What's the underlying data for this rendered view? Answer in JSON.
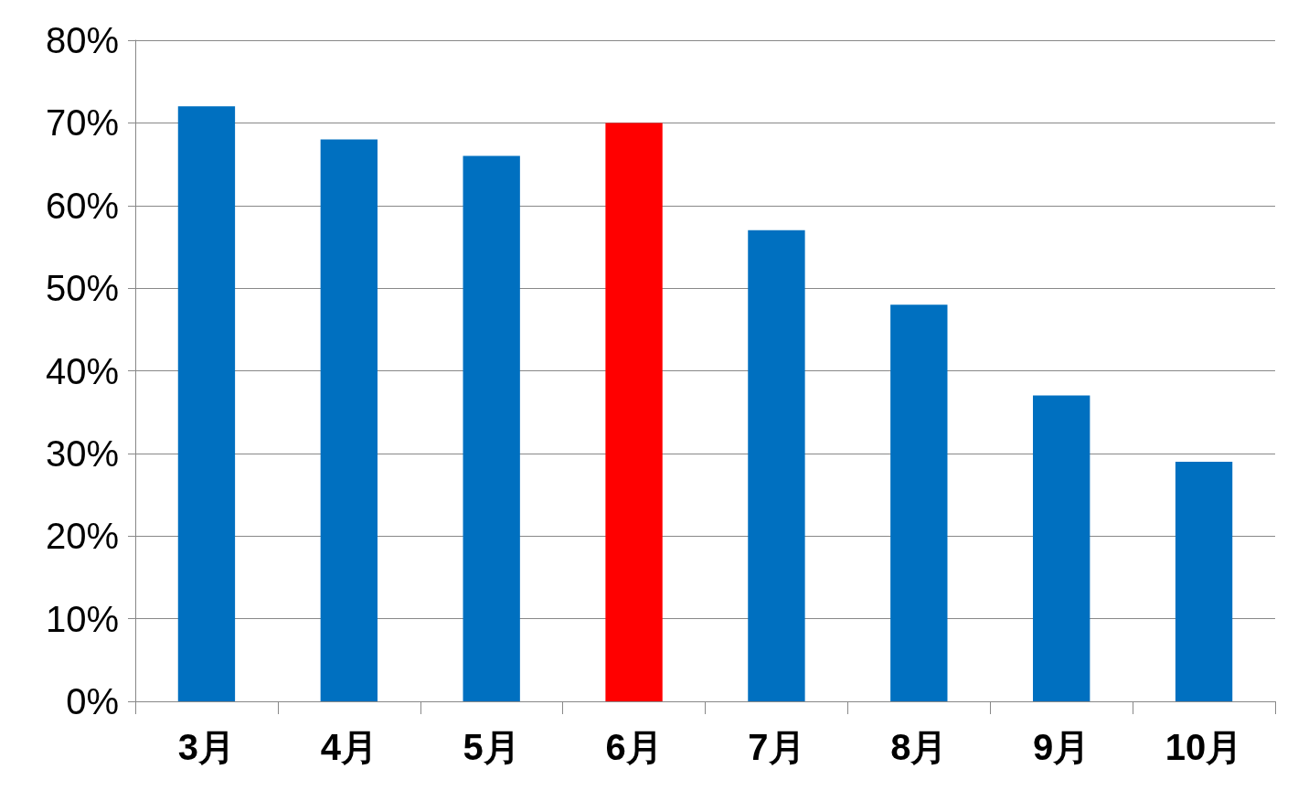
{
  "chart_data": {
    "type": "bar",
    "categories": [
      "3月",
      "4月",
      "5月",
      "6月",
      "7月",
      "8月",
      "9月",
      "10月"
    ],
    "values": [
      72,
      68,
      66,
      70,
      57,
      48,
      37,
      29
    ],
    "colors": [
      "#0070c0",
      "#0070c0",
      "#0070c0",
      "#ff0000",
      "#0070c0",
      "#0070c0",
      "#0070c0",
      "#0070c0"
    ],
    "ylim": [
      0,
      80
    ],
    "yticks": [
      {
        "value": 0,
        "label": "0%"
      },
      {
        "value": 10,
        "label": "10%"
      },
      {
        "value": 20,
        "label": "20%"
      },
      {
        "value": 30,
        "label": "30%"
      },
      {
        "value": 40,
        "label": "40%"
      },
      {
        "value": 50,
        "label": "50%"
      },
      {
        "value": 60,
        "label": "60%"
      },
      {
        "value": 70,
        "label": "70%"
      },
      {
        "value": 80,
        "label": "80%"
      }
    ],
    "grid": "y"
  }
}
